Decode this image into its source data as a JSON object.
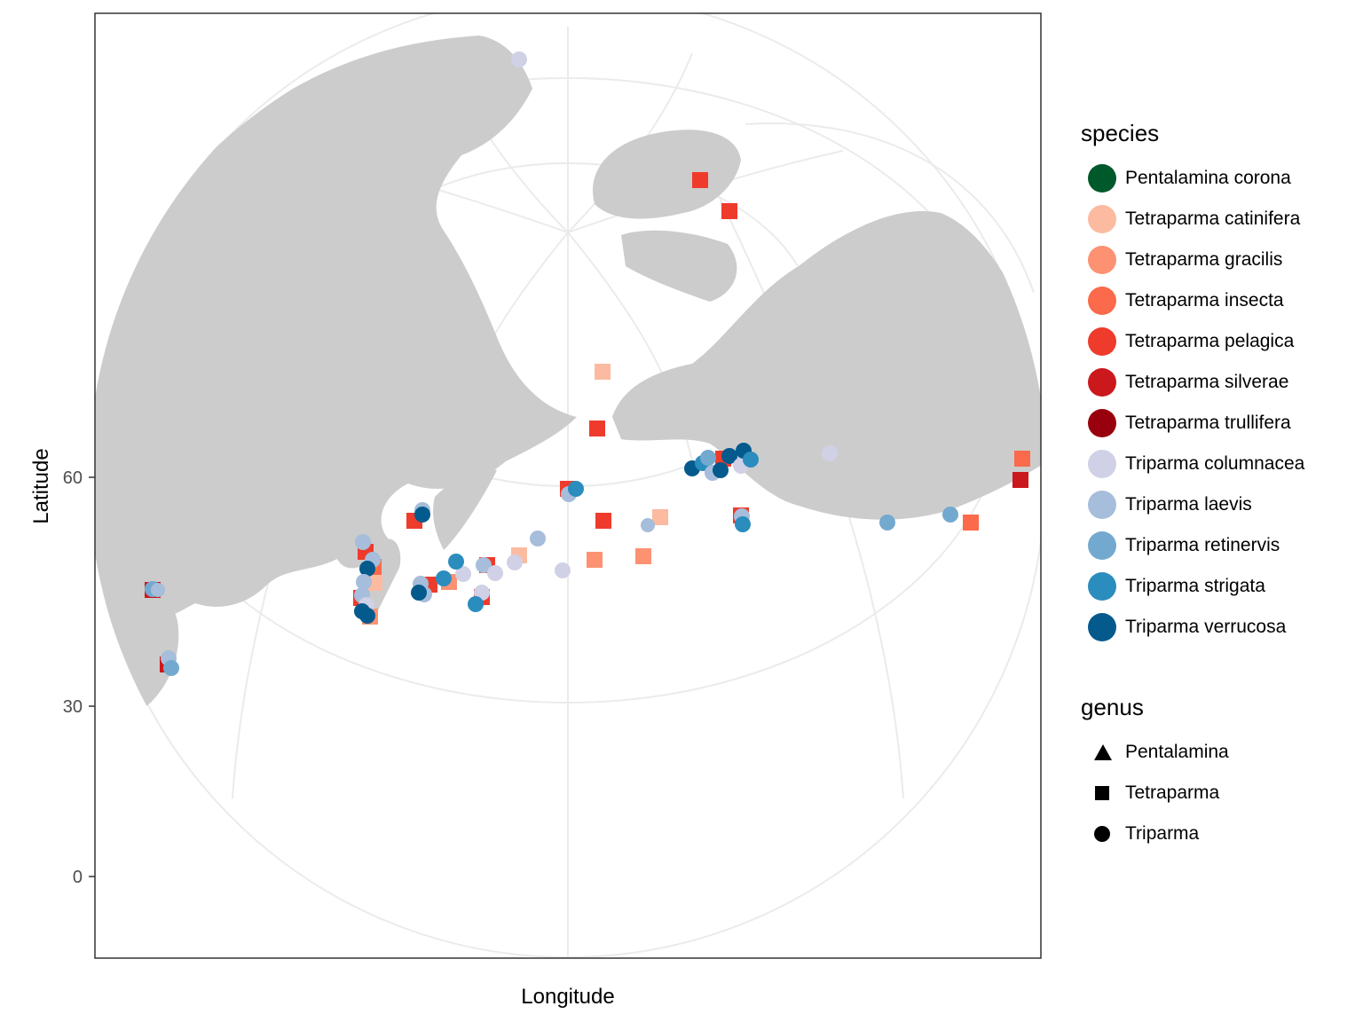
{
  "axes": {
    "x_title": "Longitude",
    "y_title": "Latitude",
    "y_ticks": [
      {
        "value": 60,
        "label": "60"
      },
      {
        "value": 30,
        "label": "30"
      },
      {
        "value": 0,
        "label": "0"
      }
    ]
  },
  "map": {
    "projection": "orthographic, north-polar oblique",
    "land_color": "#cccccc",
    "graticule_color": "#ebebeb",
    "panel_border_color": "#333333"
  },
  "legend": {
    "species_title": "species",
    "species": [
      {
        "name": "Pentalamina corona",
        "color": "#00592b"
      },
      {
        "name": "Tetraparma catinifera",
        "color": "#fcbba1"
      },
      {
        "name": "Tetraparma gracilis",
        "color": "#fc9272"
      },
      {
        "name": "Tetraparma insecta",
        "color": "#fb6a4a"
      },
      {
        "name": "Tetraparma pelagica",
        "color": "#ef3b2c"
      },
      {
        "name": "Tetraparma silverae",
        "color": "#cb181d"
      },
      {
        "name": "Tetraparma trullifera",
        "color": "#99000d"
      },
      {
        "name": "Triparma columnacea",
        "color": "#d0d1e6"
      },
      {
        "name": "Triparma laevis",
        "color": "#a6bddb"
      },
      {
        "name": "Triparma retinervis",
        "color": "#74a9cf"
      },
      {
        "name": "Triparma strigata",
        "color": "#2b8cbe"
      },
      {
        "name": "Triparma verrucosa",
        "color": "#045a8d"
      }
    ],
    "genus_title": "genus",
    "genus": [
      {
        "name": "Pentalamina",
        "shape": "triangle"
      },
      {
        "name": "Tetraparma",
        "shape": "square"
      },
      {
        "name": "Triparma",
        "shape": "circle"
      }
    ]
  }
}
